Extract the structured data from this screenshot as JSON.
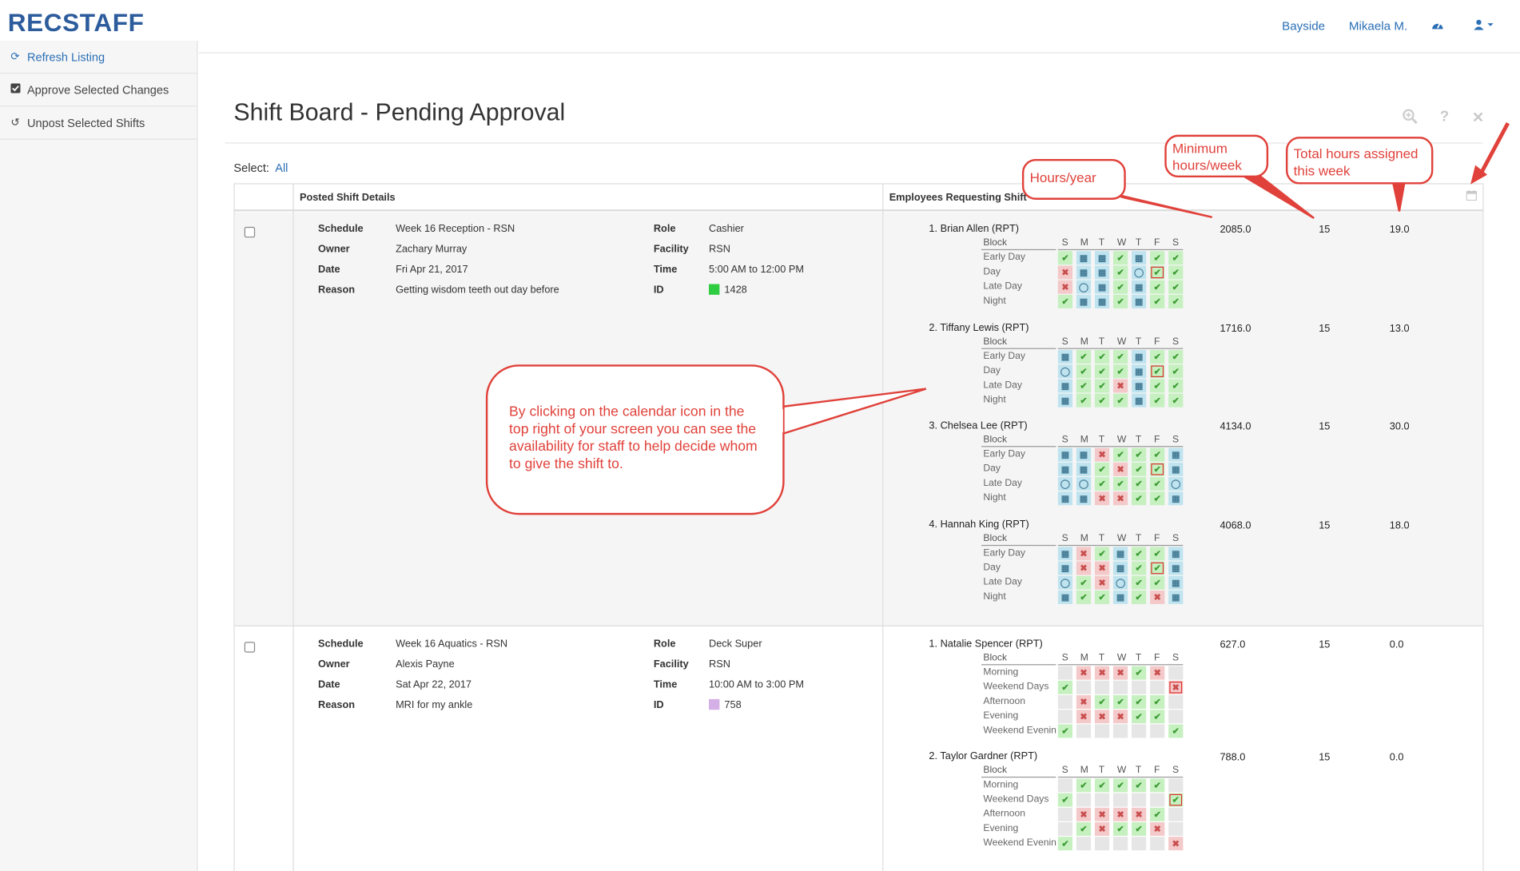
{
  "app": {
    "logo": "RECSTAFF"
  },
  "topnav": {
    "facility": "Bayside",
    "user": "Mikaela M.",
    "dashboard_icon": "dashboard-icon",
    "user_icon": "user-icon"
  },
  "sidebar": {
    "items": [
      {
        "label": "Refresh Listing",
        "icon": "refresh-icon"
      },
      {
        "label": "Approve Selected Changes",
        "icon": "checkbox-icon"
      },
      {
        "label": "Unpost Selected Shifts",
        "icon": "undo-icon"
      }
    ]
  },
  "page": {
    "title": "Shift Board - Pending Approval",
    "select_label": "Select:",
    "select_all": "All"
  },
  "table": {
    "col_details": "Posted Shift Details",
    "col_employees": "Employees Requesting Shift"
  },
  "days": [
    "S",
    "M",
    "T",
    "W",
    "T",
    "F",
    "S"
  ],
  "block_label": "Block",
  "shifts": [
    {
      "schedule": "Week 16 Reception - RSN",
      "owner": "Zachary Murray",
      "date": "Fri Apr 21, 2017",
      "reason": "Getting wisdom teeth out day before",
      "role": "Cashier",
      "facility": "RSN",
      "time": "5:00 AM to 12:00 PM",
      "id": "1428",
      "id_color": "#2ecc40",
      "labels": {
        "schedule": "Schedule",
        "owner": "Owner",
        "date": "Date",
        "reason": "Reason",
        "role": "Role",
        "facility": "Facility",
        "time": "Time",
        "id": "ID"
      },
      "employees": [
        {
          "name": "1.  Brian Allen (RPT)",
          "hours_year": "2085.0",
          "min_hours": "15",
          "total_hours": "19.0",
          "blocks": [
            "Early Day",
            "Day",
            "Late Day",
            "Night"
          ],
          "grid": [
            [
              "g",
              "b",
              "b",
              "g",
              "b",
              "g",
              "g"
            ],
            [
              "p",
              "b",
              "b",
              "g",
              "bo",
              "gr",
              "g"
            ],
            [
              "p",
              "bo",
              "b",
              "g",
              "b",
              "g",
              "g"
            ],
            [
              "g",
              "b",
              "b",
              "g",
              "b",
              "g",
              "g"
            ]
          ]
        },
        {
          "name": "2.  Tiffany Lewis (RPT)",
          "hours_year": "1716.0",
          "min_hours": "15",
          "total_hours": "13.0",
          "blocks": [
            "Early Day",
            "Day",
            "Late Day",
            "Night"
          ],
          "grid": [
            [
              "b",
              "g",
              "g",
              "g",
              "b",
              "g",
              "g"
            ],
            [
              "bo",
              "g",
              "g",
              "g",
              "b",
              "gr",
              "g"
            ],
            [
              "b",
              "g",
              "g",
              "p",
              "b",
              "g",
              "g"
            ],
            [
              "b",
              "g",
              "g",
              "g",
              "b",
              "g",
              "g"
            ]
          ]
        },
        {
          "name": "3.  Chelsea Lee (RPT)",
          "hours_year": "4134.0",
          "min_hours": "15",
          "total_hours": "30.0",
          "blocks": [
            "Early Day",
            "Day",
            "Late Day",
            "Night"
          ],
          "grid": [
            [
              "b",
              "b",
              "p",
              "g",
              "g",
              "g",
              "b"
            ],
            [
              "b",
              "b",
              "g",
              "p",
              "g",
              "gr",
              "b"
            ],
            [
              "bo",
              "bo",
              "g",
              "g",
              "g",
              "g",
              "bo"
            ],
            [
              "b",
              "b",
              "p",
              "p",
              "g",
              "g",
              "b"
            ]
          ]
        },
        {
          "name": "4.  Hannah King (RPT)",
          "hours_year": "4068.0",
          "min_hours": "15",
          "total_hours": "18.0",
          "blocks": [
            "Early Day",
            "Day",
            "Late Day",
            "Night"
          ],
          "grid": [
            [
              "b",
              "p",
              "g",
              "b",
              "g",
              "g",
              "b"
            ],
            [
              "b",
              "p",
              "p",
              "b",
              "g",
              "gr",
              "b"
            ],
            [
              "bo",
              "g",
              "p",
              "bo",
              "g",
              "g",
              "b"
            ],
            [
              "b",
              "g",
              "g",
              "b",
              "g",
              "p",
              "b"
            ]
          ]
        }
      ]
    },
    {
      "schedule": "Week 16 Aquatics - RSN",
      "owner": "Alexis Payne",
      "date": "Sat Apr 22, 2017",
      "reason": "MRI for my ankle",
      "role": "Deck Super",
      "facility": "RSN",
      "time": "10:00 AM to 3:00 PM",
      "id": "758",
      "id_color": "#d5b0e6",
      "labels": {
        "schedule": "Schedule",
        "owner": "Owner",
        "date": "Date",
        "reason": "Reason",
        "role": "Role",
        "facility": "Facility",
        "time": "Time",
        "id": "ID"
      },
      "employees": [
        {
          "name": "1.  Natalie Spencer (RPT)",
          "hours_year": "627.0",
          "min_hours": "15",
          "total_hours": "0.0",
          "blocks": [
            "Morning",
            "Weekend Days",
            "Afternoon",
            "Evening",
            "Weekend Evenin"
          ],
          "grid": [
            [
              "x",
              "p",
              "p",
              "p",
              "g",
              "p",
              "x"
            ],
            [
              "g",
              "x",
              "x",
              "x",
              "x",
              "x",
              "pr"
            ],
            [
              "x",
              "p",
              "g",
              "g",
              "g",
              "g",
              "x"
            ],
            [
              "x",
              "p",
              "p",
              "p",
              "g",
              "g",
              "x"
            ],
            [
              "g",
              "x",
              "x",
              "x",
              "x",
              "x",
              "g"
            ]
          ]
        },
        {
          "name": "2.  Taylor Gardner (RPT)",
          "hours_year": "788.0",
          "min_hours": "15",
          "total_hours": "0.0",
          "blocks": [
            "Morning",
            "Weekend Days",
            "Afternoon",
            "Evening",
            "Weekend Evenin"
          ],
          "grid": [
            [
              "x",
              "g",
              "g",
              "g",
              "g",
              "g",
              "x"
            ],
            [
              "g",
              "x",
              "x",
              "x",
              "x",
              "x",
              "gr"
            ],
            [
              "x",
              "p",
              "p",
              "p",
              "p",
              "g",
              "x"
            ],
            [
              "x",
              "g",
              "p",
              "g",
              "g",
              "p",
              "x"
            ],
            [
              "g",
              "x",
              "x",
              "x",
              "x",
              "x",
              "p"
            ]
          ]
        }
      ]
    }
  ],
  "annotations": {
    "hours_year": "Hours/year",
    "min_hours": "Minimum hours/week",
    "total_hours": "Total hours assigned this week",
    "tip": "By clicking on the calendar icon in the top right of your screen you can see the availability for staff to help decide whom to give the shift to."
  }
}
